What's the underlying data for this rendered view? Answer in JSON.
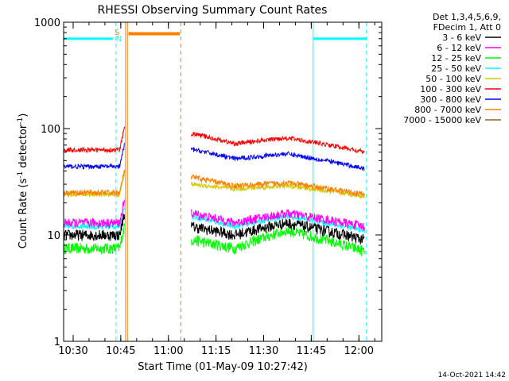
{
  "chart_data": {
    "type": "line",
    "title": "RHESSI Observing Summary Count Rates",
    "xlabel": "Start Time (01-May-09 10:27:42)",
    "ylabel_main": "Count Rate (s",
    "ylabel_sup1": "-1",
    "ylabel_mid": " detector",
    "ylabel_sup2": "-1",
    "ylabel_end": ")",
    "y_scale": "log",
    "ylim": [
      1,
      1000
    ],
    "xlim_minutes": [
      10.45,
      12.12
    ],
    "x_ticks": [
      {
        "label": "10:30",
        "value": 10.5
      },
      {
        "label": "10:45",
        "value": 10.75
      },
      {
        "label": "11:00",
        "value": 11.0
      },
      {
        "label": "11:15",
        "value": 11.25
      },
      {
        "label": "11:30",
        "value": 11.5
      },
      {
        "label": "11:45",
        "value": 11.75
      },
      {
        "label": "12:00",
        "value": 12.0
      }
    ],
    "y_ticks": [
      {
        "label": "1",
        "value": 1
      },
      {
        "label": "10",
        "value": 10
      },
      {
        "label": "100",
        "value": 100
      },
      {
        "label": "1000",
        "value": 1000
      }
    ],
    "legend": {
      "placement": "right",
      "header1": "Det 1,3,4,5,6,9,",
      "header2": "FDecim 1, Att 0",
      "entries": [
        {
          "name": "3 - 6 keV",
          "color": "#000000"
        },
        {
          "name": "6 - 12 keV",
          "color": "#ff00ff"
        },
        {
          "name": "12 - 25 keV",
          "color": "#00ff00"
        },
        {
          "name": "25 - 50 keV",
          "color": "#00ffff"
        },
        {
          "name": "50 - 100 keV",
          "color": "#d4c800"
        },
        {
          "name": "100 - 300 keV",
          "color": "#ff0000"
        },
        {
          "name": "300 - 800 keV",
          "color": "#0000ff"
        },
        {
          "name": "800 - 7000 keV",
          "color": "#ff8000"
        },
        {
          "name": "7000 - 15000 keV",
          "color": "#8b6914"
        }
      ]
    },
    "segments": [
      {
        "start": 10.45,
        "end": 10.77
      },
      {
        "start": 11.12,
        "end": 12.03
      }
    ],
    "series_levels": [
      {
        "color": "#ff0000",
        "seg1": 63,
        "seg2_start": 90,
        "seg2_mid": 72,
        "seg2_peak": 82,
        "seg2_end": 60,
        "noise": 0.05
      },
      {
        "color": "#0000ff",
        "seg1": 44,
        "seg2_start": 64,
        "seg2_mid": 52,
        "seg2_peak": 58,
        "seg2_end": 42,
        "noise": 0.05
      },
      {
        "color": "#ff8000",
        "seg1": 25,
        "seg2_start": 35,
        "seg2_mid": 29,
        "seg2_peak": 31,
        "seg2_end": 24,
        "noise": 0.06
      },
      {
        "color": "#d4c800",
        "seg1": 24,
        "seg2_start": 30,
        "seg2_mid": 27,
        "seg2_peak": 29,
        "seg2_end": 23,
        "noise": 0.05
      },
      {
        "color": "#ff00ff",
        "seg1": 13,
        "seg2_start": 16,
        "seg2_mid": 13,
        "seg2_peak": 16,
        "seg2_end": 12,
        "noise": 0.1
      },
      {
        "color": "#00ffff",
        "seg1": 12,
        "seg2_start": 15,
        "seg2_mid": 12,
        "seg2_peak": 15,
        "seg2_end": 11,
        "noise": 0.06
      },
      {
        "color": "#000000",
        "seg1": 10,
        "seg2_start": 12,
        "seg2_mid": 10,
        "seg2_peak": 13,
        "seg2_end": 9,
        "noise": 0.12
      },
      {
        "color": "#00ff00",
        "seg1": 7.5,
        "seg2_start": 9,
        "seg2_mid": 7.5,
        "seg2_peak": 11,
        "seg2_end": 7,
        "noise": 0.12
      }
    ],
    "saa_flag": {
      "color": "#00ffff",
      "value": 700,
      "intervals": [
        [
          10.45,
          10.71
        ],
        [
          11.76,
          12.04
        ]
      ]
    },
    "attenuator_flag": {
      "color": "#ff8000",
      "value": 780,
      "interval": [
        10.79,
        11.06
      ]
    },
    "flag_letters": [
      {
        "text": "S",
        "color": "#ff8000",
        "x": 10.73
      },
      {
        "text": "N",
        "color": "#00ffff",
        "x": 10.74
      }
    ],
    "vlines": [
      {
        "x": 10.45,
        "color": "#00ffff",
        "dash": false
      },
      {
        "x": 10.725,
        "color": "#00ffff",
        "dash": true
      },
      {
        "x": 10.775,
        "color": "#ff8000",
        "dash": false
      },
      {
        "x": 10.785,
        "color": "#ff8000",
        "dash": false
      },
      {
        "x": 11.065,
        "color": "#ff8000",
        "dash": true
      },
      {
        "x": 11.76,
        "color": "#00ffff",
        "dash": false
      },
      {
        "x": 12.04,
        "color": "#00ffff",
        "dash": true
      }
    ]
  },
  "footer": {
    "timestamp": "14-Oct-2021 14:42"
  }
}
